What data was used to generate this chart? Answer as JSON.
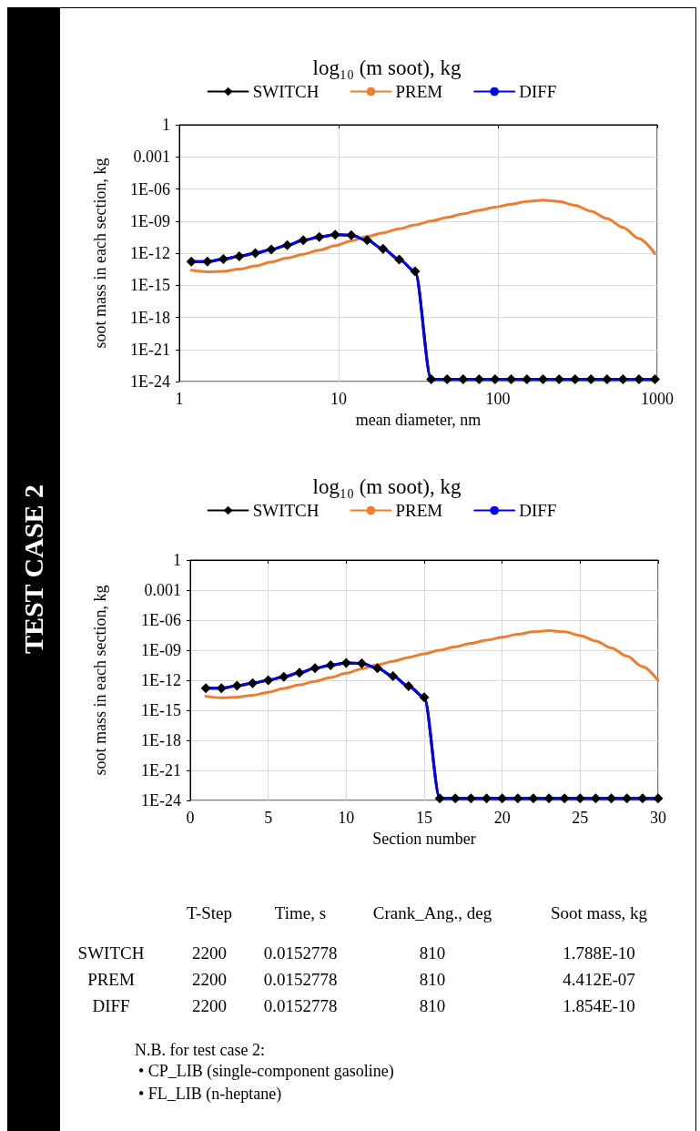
{
  "chart_data": [
    {
      "type": "line",
      "title": "log₁₀ (m soot), kg",
      "xlabel": "mean diameter, nm",
      "ylabel": "soot mass in each section, kg",
      "log": "xy",
      "x": [
        1.19,
        1.5,
        1.89,
        2.38,
        3.0,
        3.78,
        4.76,
        6.0,
        7.56,
        9.52,
        12.0,
        15.1,
        19.0,
        24.0,
        30.2,
        38.1,
        48.0,
        60.5,
        76.2,
        96.0,
        121,
        152,
        192,
        242,
        305,
        384,
        484,
        610,
        768,
        968
      ],
      "xlim": [
        1,
        1000
      ],
      "xticks": [
        1,
        10,
        100,
        1000
      ],
      "ylim": [
        1e-24,
        1
      ],
      "yticks": [
        {
          "value": 1e-24,
          "label": "1E-24"
        },
        {
          "value": 1e-21,
          "label": "1E-21"
        },
        {
          "value": 1e-18,
          "label": "1E-18"
        },
        {
          "value": 1e-15,
          "label": "1E-15"
        },
        {
          "value": 1e-12,
          "label": "1E-12"
        },
        {
          "value": 1e-09,
          "label": "1E-09"
        },
        {
          "value": 1e-06,
          "label": "1E-06"
        },
        {
          "value": 0.001,
          "label": "0.001"
        },
        {
          "value": 1,
          "label": "1"
        }
      ],
      "grid": true,
      "legend": "top",
      "line_style": "solid",
      "series": [
        {
          "name": "SWITCH",
          "color": "#000000",
          "marker": "diamond",
          "values": [
            1.6e-13,
            1.6e-13,
            2.8e-13,
            5e-13,
            1e-12,
            2.2e-12,
            5.6e-12,
            1.6e-11,
            3.2e-11,
            5.4e-11,
            4.7e-11,
            1.6e-11,
            2.5e-12,
            2.5e-13,
            2e-14,
            1.6e-24,
            1.6e-24,
            1.6e-24,
            1.6e-24,
            1.6e-24,
            1.6e-24,
            1.6e-24,
            1.6e-24,
            1.6e-24,
            1.6e-24,
            1.6e-24,
            1.6e-24,
            1.6e-24,
            1.6e-24,
            1.6e-24
          ]
        },
        {
          "name": "PREM",
          "color": "#ed7d31",
          "values": [
            2.5e-14,
            1.8e-14,
            2e-14,
            3.2e-14,
            6.3e-14,
            1.5e-13,
            3.5e-13,
            7.9e-13,
            1.9e-12,
            5e-12,
            1.4e-11,
            3.5e-11,
            7.9e-11,
            1.9e-10,
            4.4e-10,
            1e-09,
            2.2e-09,
            4.7e-09,
            1e-08,
            2e-08,
            3.8e-08,
            6.8e-08,
            8.9e-08,
            6.8e-08,
            2.9e-08,
            8.3e-09,
            1.7e-09,
            2.5e-10,
            2.3e-11,
            9.1e-13
          ]
        },
        {
          "name": "DIFF",
          "color": "#0000ff",
          "values": [
            1.6e-13,
            1.6e-13,
            2.8e-13,
            5e-13,
            1e-12,
            2.2e-12,
            5.6e-12,
            1.6e-11,
            3.2e-11,
            5.4e-11,
            4.7e-11,
            1.6e-11,
            2.5e-12,
            2.5e-13,
            2e-14,
            1.6e-24,
            1.6e-24,
            1.6e-24,
            1.6e-24,
            1.6e-24,
            1.6e-24,
            1.6e-24,
            1.6e-24,
            1.6e-24,
            1.6e-24,
            1.6e-24,
            1.6e-24,
            1.6e-24,
            1.6e-24,
            1.6e-24
          ]
        }
      ]
    },
    {
      "type": "line",
      "title": "log₁₀ (m soot), kg",
      "xlabel": "Section number",
      "ylabel": "soot mass in each section, kg",
      "log": "y",
      "x": [
        1,
        2,
        3,
        4,
        5,
        6,
        7,
        8,
        9,
        10,
        11,
        12,
        13,
        14,
        15,
        16,
        17,
        18,
        19,
        20,
        21,
        22,
        23,
        24,
        25,
        26,
        27,
        28,
        29,
        30
      ],
      "xlim": [
        0,
        30
      ],
      "xticks": [
        0,
        5,
        10,
        15,
        20,
        25,
        30
      ],
      "ylim": [
        1e-24,
        1
      ],
      "yticks": [
        {
          "value": 1e-24,
          "label": "1E-24"
        },
        {
          "value": 1e-21,
          "label": "1E-21"
        },
        {
          "value": 1e-18,
          "label": "1E-18"
        },
        {
          "value": 1e-15,
          "label": "1E-15"
        },
        {
          "value": 1e-12,
          "label": "1E-12"
        },
        {
          "value": 1e-09,
          "label": "1E-09"
        },
        {
          "value": 1e-06,
          "label": "1E-06"
        },
        {
          "value": 0.001,
          "label": "0.001"
        },
        {
          "value": 1,
          "label": "1"
        }
      ],
      "grid": true,
      "legend": "top",
      "line_style": "solid",
      "series": [
        {
          "name": "SWITCH",
          "color": "#000000",
          "marker": "diamond",
          "values": [
            1.6e-13,
            1.6e-13,
            2.8e-13,
            5e-13,
            1e-12,
            2.2e-12,
            5.6e-12,
            1.6e-11,
            3.2e-11,
            5.4e-11,
            4.7e-11,
            1.6e-11,
            2.5e-12,
            2.5e-13,
            2e-14,
            1.6e-24,
            1.6e-24,
            1.6e-24,
            1.6e-24,
            1.6e-24,
            1.6e-24,
            1.6e-24,
            1.6e-24,
            1.6e-24,
            1.6e-24,
            1.6e-24,
            1.6e-24,
            1.6e-24,
            1.6e-24,
            1.6e-24
          ]
        },
        {
          "name": "PREM",
          "color": "#ed7d31",
          "values": [
            2.5e-14,
            1.8e-14,
            2e-14,
            3.2e-14,
            6.3e-14,
            1.5e-13,
            3.5e-13,
            7.9e-13,
            1.9e-12,
            5e-12,
            1.4e-11,
            3.5e-11,
            7.9e-11,
            1.9e-10,
            4.4e-10,
            1e-09,
            2.2e-09,
            4.7e-09,
            1e-08,
            2e-08,
            3.8e-08,
            6.8e-08,
            8.9e-08,
            6.8e-08,
            2.9e-08,
            8.3e-09,
            1.7e-09,
            2.5e-10,
            2.3e-11,
            9.1e-13
          ]
        },
        {
          "name": "DIFF",
          "color": "#0000ff",
          "values": [
            1.6e-13,
            1.6e-13,
            2.8e-13,
            5e-13,
            1e-12,
            2.2e-12,
            5.6e-12,
            1.6e-11,
            3.2e-11,
            5.4e-11,
            4.7e-11,
            1.6e-11,
            2.5e-12,
            2.5e-13,
            2e-14,
            1.6e-24,
            1.6e-24,
            1.6e-24,
            1.6e-24,
            1.6e-24,
            1.6e-24,
            1.6e-24,
            1.6e-24,
            1.6e-24,
            1.6e-24,
            1.6e-24,
            1.6e-24,
            1.6e-24,
            1.6e-24,
            1.6e-24
          ]
        }
      ]
    },
    {
      "type": "other",
      "title": "TEST CASE 2",
      "categories": [
        "T-Step",
        "Time, s",
        "Crank_Ang., deg",
        "Soot mass, kg"
      ],
      "y_categories": [
        "SWITCH",
        "PREM",
        "DIFF"
      ],
      "cell_labels": [
        [
          "2200",
          "0.0152778",
          "810",
          "1.788E-10"
        ],
        [
          "2200",
          "0.0152778",
          "810",
          "4.412E-07"
        ],
        [
          "2200",
          "0.0152778",
          "810",
          "1.854E-10"
        ]
      ],
      "annotations": [
        "N.B. for test case 2:",
        "• CP_LIB (single-component gasoline)",
        "• FL_LIB (n-heptane)"
      ]
    }
  ]
}
